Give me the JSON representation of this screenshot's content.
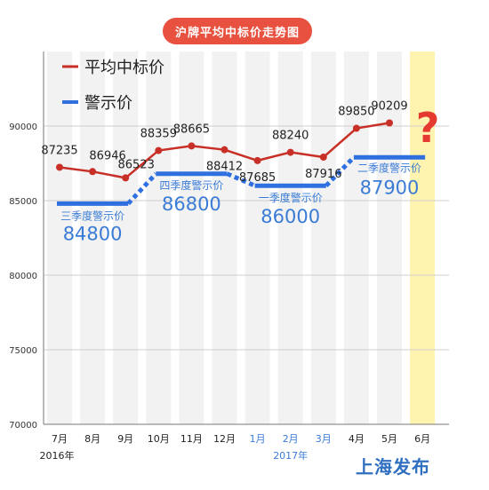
{
  "header": {
    "title": "沪牌平均中标价走势图"
  },
  "brand": "上海发布",
  "question_mark": "?",
  "colors": {
    "avg": "#c83027",
    "warn": "#2f6fe0",
    "warn_text": "#3a7bd5",
    "highlight": "#fff3b0"
  },
  "chart_data": {
    "type": "line",
    "categories": [
      "7月",
      "8月",
      "9月",
      "10月",
      "11月",
      "12月",
      "1月",
      "2月",
      "3月",
      "4月",
      "5月",
      "6月"
    ],
    "year_labels": [
      "2016年",
      "2017年"
    ],
    "ylim": [
      70000,
      95000
    ],
    "yticks": [
      70000,
      75000,
      80000,
      85000,
      90000
    ],
    "grid": true,
    "legend": {
      "position": "top-left",
      "avg_label": "平均中标价",
      "warn_label": "警示价"
    },
    "series": [
      {
        "name": "平均中标价",
        "values": [
          87235,
          86946,
          86523,
          88359,
          88665,
          88412,
          87685,
          88240,
          87916,
          89850,
          90209,
          null
        ]
      },
      {
        "name": "警示价",
        "values": [
          84800,
          84800,
          84800,
          86800,
          86800,
          86800,
          86000,
          86000,
          86000,
          87900,
          87900,
          87900
        ]
      }
    ],
    "warning_periods": [
      {
        "label": "三季度警示价",
        "value": 84800,
        "start": 0,
        "end": 2
      },
      {
        "label": "四季度警示价",
        "value": 86800,
        "start": 3,
        "end": 5
      },
      {
        "label": "一季度警示价",
        "value": 86000,
        "start": 6,
        "end": 8
      },
      {
        "label": "二季度警示价",
        "value": 87900,
        "start": 9,
        "end": 11
      }
    ],
    "highlight_category": "6月"
  }
}
